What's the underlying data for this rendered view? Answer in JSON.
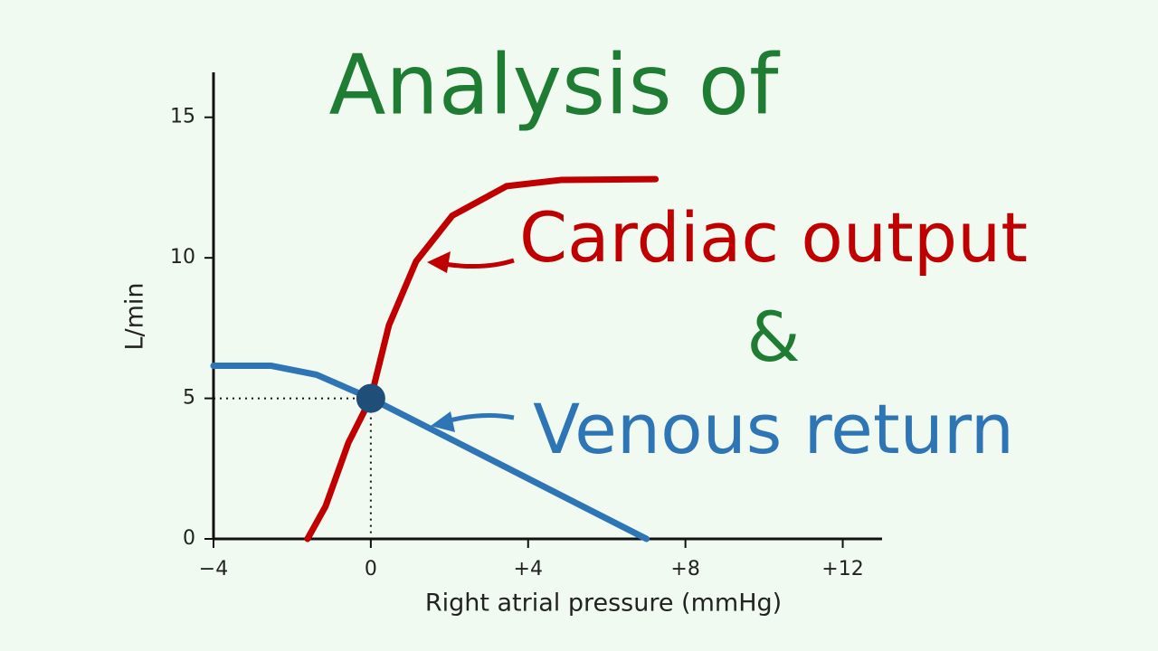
{
  "chart_data": {
    "type": "line",
    "xlabel": "Right atrial pressure (mmHg)",
    "ylabel": "L/min",
    "xlim": [
      -4,
      13
    ],
    "ylim": [
      0,
      16.6
    ],
    "xticks": [
      {
        "value": -4,
        "label": "−4"
      },
      0,
      {
        "value": 4,
        "label": "+4"
      },
      {
        "value": 8,
        "label": "+8"
      },
      {
        "value": 12,
        "label": "+12"
      }
    ],
    "yticks": [
      0,
      5,
      10,
      15
    ],
    "series": [
      {
        "name": "Cardiac output",
        "color": "#c00000",
        "x": [
          -1.61,
          -1.15,
          -0.57,
          0,
          0.46,
          1.15,
          2.07,
          3.45,
          4.83,
          7.24
        ],
        "values": [
          0,
          1.16,
          3.42,
          5,
          7.6,
          9.87,
          11.5,
          12.55,
          12.77,
          12.8
        ]
      },
      {
        "name": "Venous return",
        "color": "#2e75b6",
        "x": [
          -4,
          -2.53,
          -1.38,
          0,
          7.01
        ],
        "values": [
          6.16,
          6.16,
          5.84,
          5,
          0
        ]
      }
    ],
    "point": {
      "x": 0,
      "y": 5,
      "color": "#1f4e79"
    },
    "annotations": [
      {
        "text": "Analysis of",
        "color": "#1e7d32"
      },
      {
        "text": "Cardiac output",
        "color": "#c00000"
      },
      {
        "text": "&",
        "color": "#1e7d32"
      },
      {
        "text": "Venous return",
        "color": "#2e75b6"
      }
    ]
  }
}
